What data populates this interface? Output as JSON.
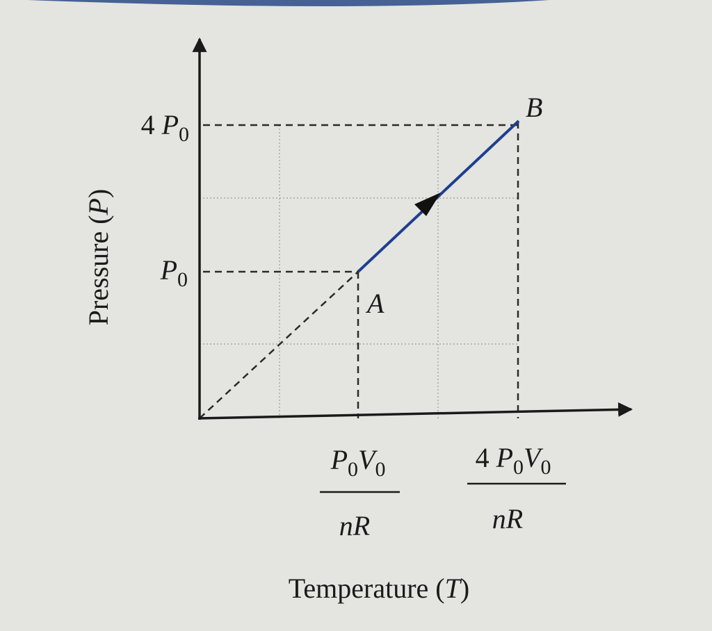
{
  "y_axis_label": "Pressure (",
  "y_axis_var": "P",
  "y_axis_close": ")",
  "x_axis_label": "Temperature (",
  "x_axis_var": "T",
  "x_axis_close": ")",
  "y_ticks": {
    "p0": {
      "coef": "",
      "sym": "P",
      "sub": "0"
    },
    "p4": {
      "coef": "4 ",
      "sym": "P",
      "sub": "0"
    }
  },
  "x_ticks": {
    "t1": {
      "num_coef": "",
      "den": "nR"
    },
    "t4": {
      "num_coef": "4 ",
      "den": "nR"
    }
  },
  "points": {
    "a": "A",
    "b": "B"
  },
  "colors": {
    "process_line": "#1f3f8f",
    "axes": "#1a1a1a",
    "background": "#e4e4e0"
  }
}
